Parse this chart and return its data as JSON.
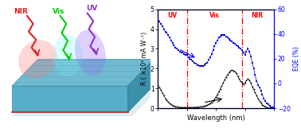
{
  "fig_width": 3.78,
  "fig_height": 1.66,
  "dpi": 100,
  "plot_bg": "#ffffff",
  "vline_color": "red",
  "vline_positions": [
    400,
    780
  ],
  "xlabel": "Wavelength (nm)",
  "ylabel_left": "R ( ×10² mA W⁻¹)",
  "ylabel_right": "EQE (%)",
  "ylim_left": [
    0,
    5
  ],
  "ylim_right": [
    -20,
    60
  ],
  "yticks_left": [
    0,
    1,
    2,
    3,
    4,
    5
  ],
  "yticks_right": [
    -20,
    0,
    20,
    40,
    60
  ],
  "xlim": [
    200,
    1000
  ],
  "R_color": "#000000",
  "EQE_color": "#0000ee",
  "slab_top_color": "#7ec8de",
  "slab_front_color": "#5ab0cc",
  "slab_right_color": "#3d90aa",
  "slab_stripe_color": "#2d7a92",
  "R_x": [
    200,
    210,
    220,
    230,
    240,
    250,
    260,
    270,
    280,
    290,
    300,
    310,
    320,
    330,
    340,
    350,
    360,
    370,
    380,
    390,
    400,
    410,
    420,
    430,
    440,
    450,
    460,
    470,
    480,
    490,
    500,
    510,
    520,
    530,
    540,
    550,
    560,
    570,
    580,
    590,
    600,
    610,
    620,
    630,
    640,
    650,
    660,
    670,
    680,
    690,
    700,
    710,
    720,
    730,
    740,
    750,
    760,
    770,
    780,
    790,
    800,
    810,
    820,
    830,
    840,
    850,
    860,
    870,
    880,
    890,
    900,
    910,
    920,
    930,
    940,
    950,
    960,
    970,
    980,
    990,
    1000
  ],
  "R_y": [
    1.15,
    1.05,
    0.92,
    0.78,
    0.63,
    0.5,
    0.4,
    0.32,
    0.25,
    0.19,
    0.14,
    0.11,
    0.09,
    0.07,
    0.06,
    0.05,
    0.04,
    0.04,
    0.04,
    0.04,
    0.04,
    0.04,
    0.04,
    0.04,
    0.04,
    0.05,
    0.05,
    0.06,
    0.06,
    0.07,
    0.08,
    0.09,
    0.11,
    0.13,
    0.16,
    0.19,
    0.24,
    0.3,
    0.37,
    0.46,
    0.57,
    0.7,
    0.84,
    0.98,
    1.13,
    1.28,
    1.44,
    1.58,
    1.7,
    1.8,
    1.88,
    1.92,
    1.9,
    1.85,
    1.76,
    1.62,
    1.48,
    1.36,
    1.3,
    1.22,
    1.28,
    1.4,
    1.48,
    1.42,
    1.28,
    1.1,
    0.95,
    0.8,
    0.65,
    0.5,
    0.38,
    0.27,
    0.18,
    0.12,
    0.07,
    0.04,
    0.02,
    0.01,
    0.01,
    0.01,
    0.01
  ],
  "EQE_x": [
    200,
    210,
    220,
    230,
    240,
    250,
    260,
    270,
    280,
    290,
    300,
    310,
    320,
    330,
    340,
    350,
    360,
    370,
    380,
    390,
    400,
    410,
    420,
    430,
    440,
    450,
    460,
    470,
    480,
    490,
    500,
    510,
    520,
    530,
    540,
    550,
    560,
    570,
    580,
    590,
    600,
    610,
    620,
    630,
    640,
    650,
    660,
    670,
    680,
    690,
    700,
    710,
    720,
    730,
    740,
    750,
    760,
    770,
    780,
    790,
    800,
    810,
    820,
    830,
    840,
    850,
    860,
    870,
    880,
    890,
    900,
    910,
    920,
    930,
    940,
    950,
    960,
    970,
    980,
    990,
    1000
  ],
  "EQE_y": [
    52,
    50,
    48,
    46,
    44,
    42,
    41,
    39,
    37,
    35,
    33,
    31,
    29,
    28,
    27,
    26,
    25,
    25,
    24,
    23,
    23,
    21,
    20,
    19,
    18,
    17,
    16,
    15,
    15,
    14,
    14,
    14,
    15,
    16,
    17,
    19,
    21,
    24,
    27,
    30,
    33,
    35,
    37,
    38,
    39,
    39,
    39,
    38,
    37,
    36,
    35,
    34,
    33,
    32,
    31,
    30,
    29,
    28,
    27,
    25,
    23,
    26,
    28,
    26,
    22,
    17,
    12,
    7,
    2,
    -1,
    -3,
    -6,
    -9,
    -12,
    -14,
    -16,
    -17,
    -18,
    -19,
    -19,
    -19
  ]
}
